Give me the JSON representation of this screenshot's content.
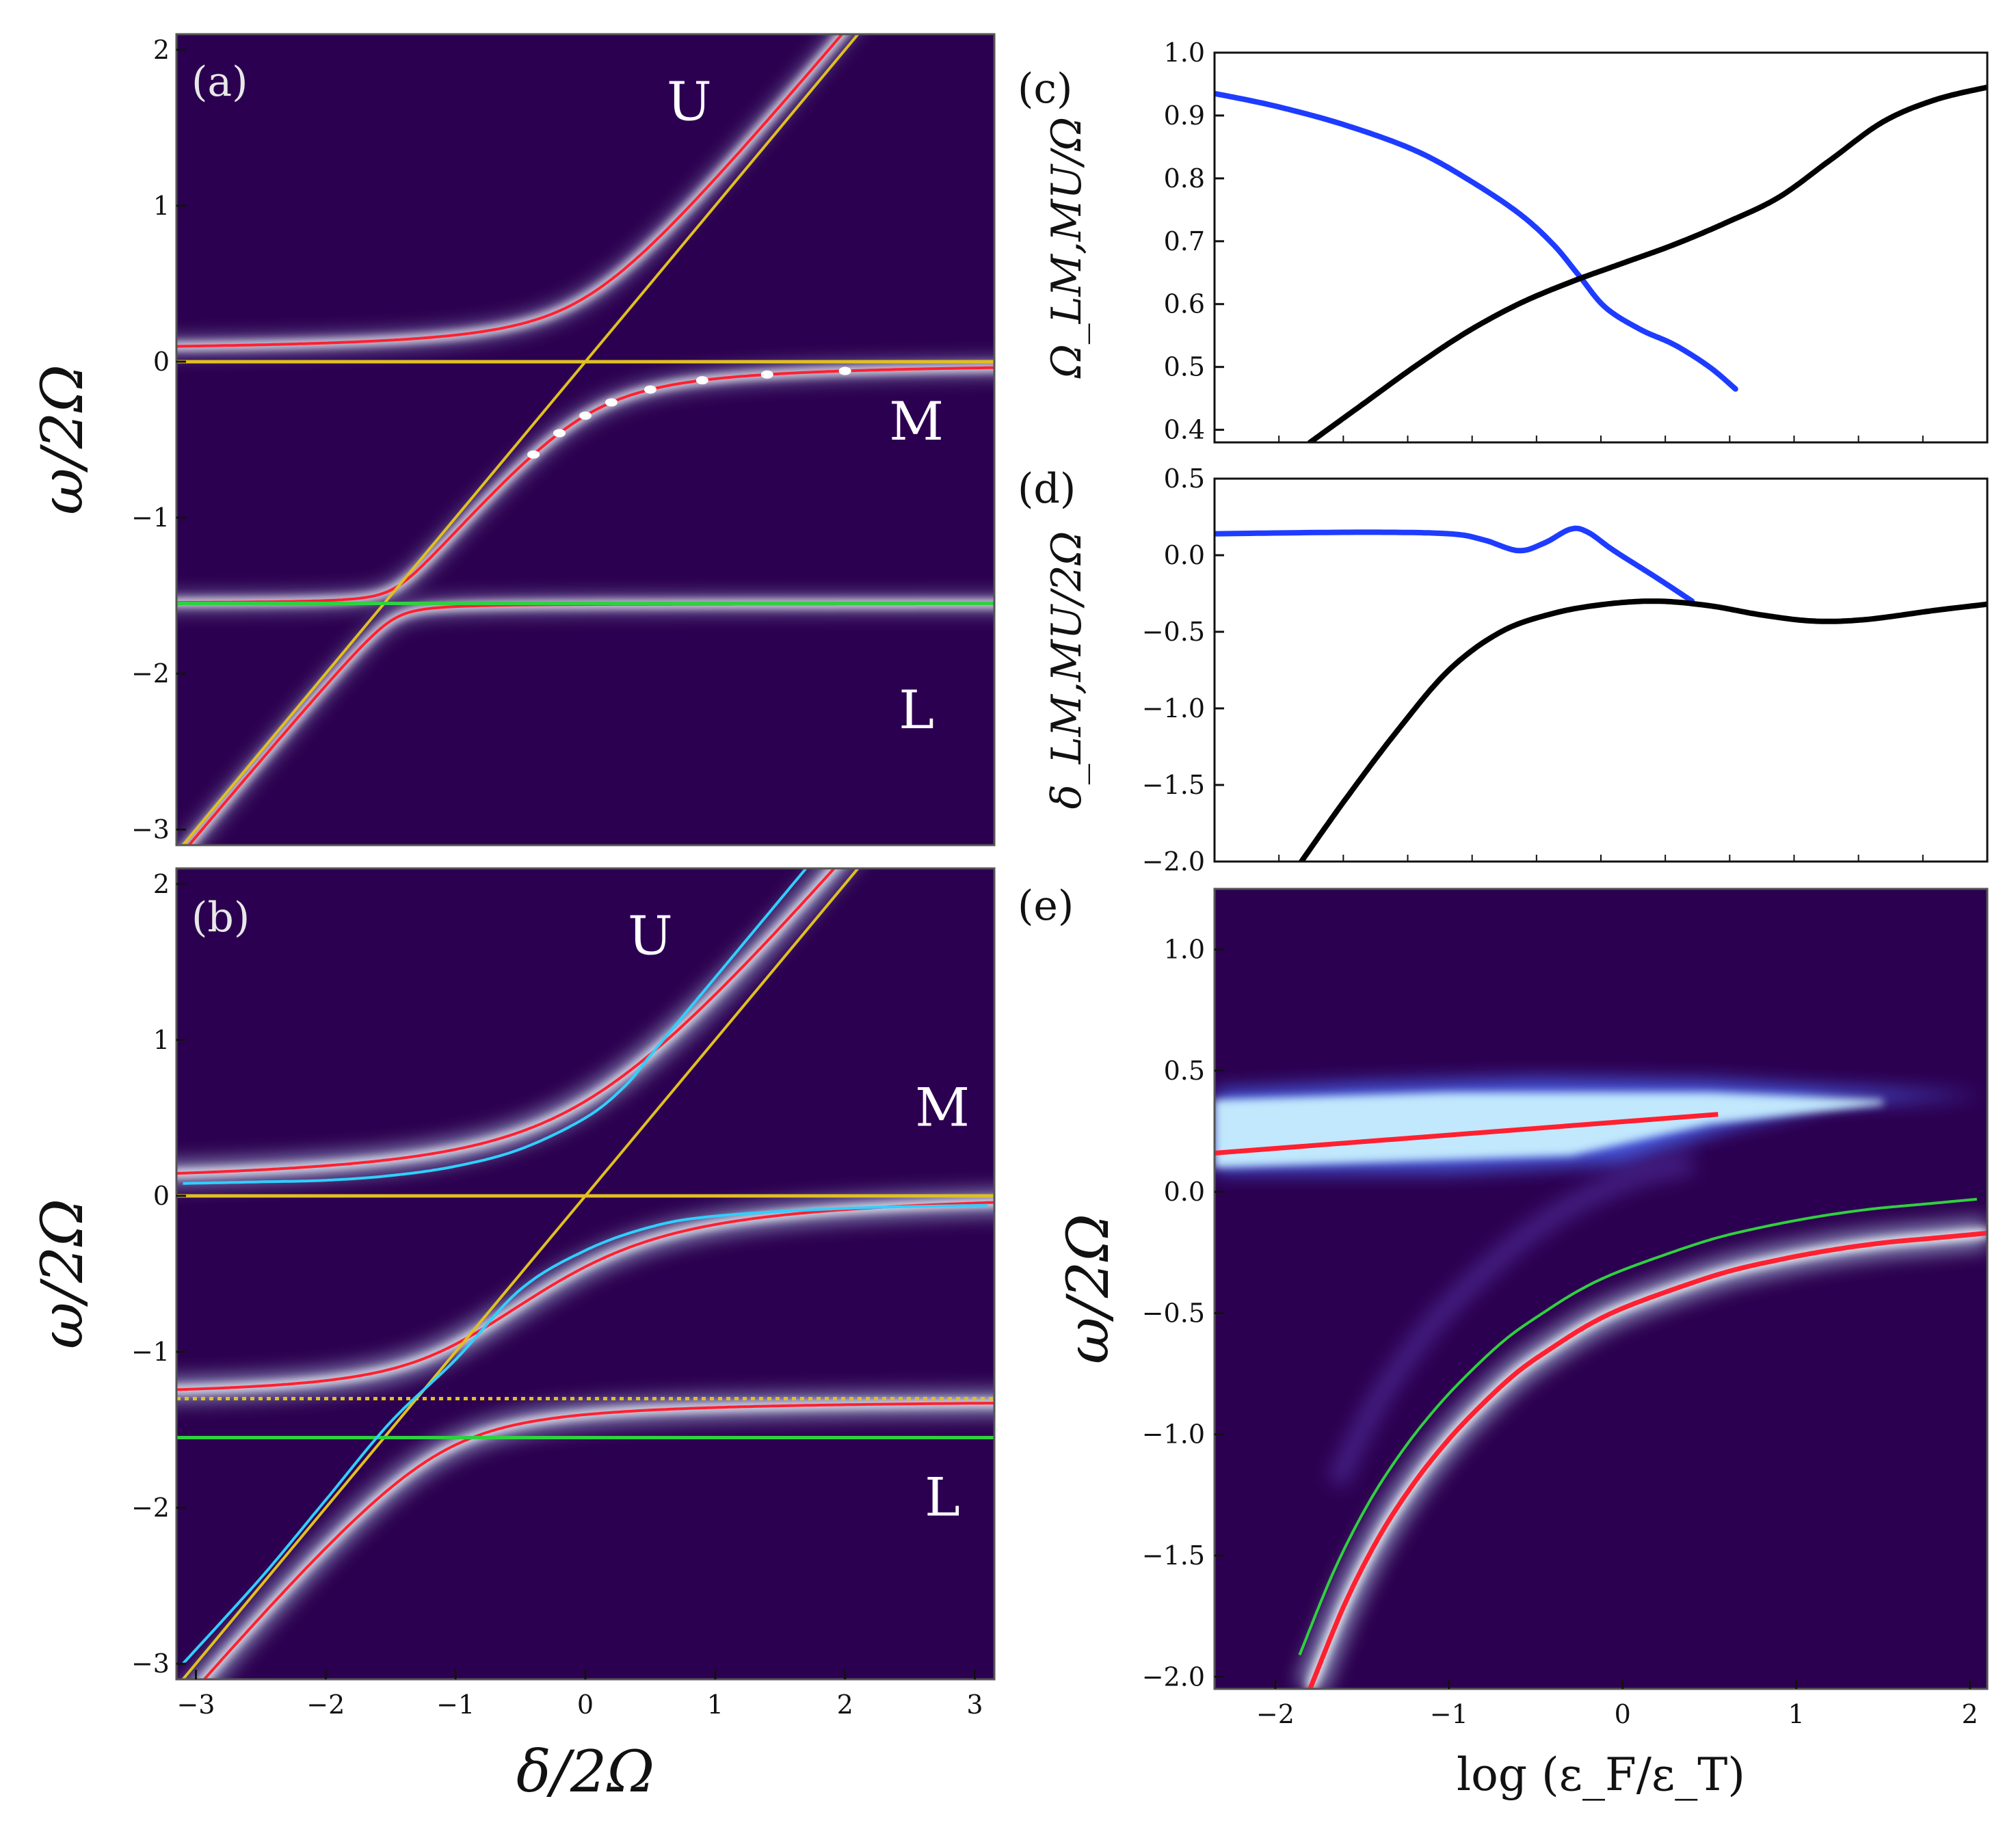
{
  "colors": {
    "background": "#2c0050",
    "glow": "#c8f0ff",
    "red": "#ff2030",
    "cyan": "#30d0ff",
    "yellow": "#e0c020",
    "green": "#30d040",
    "blue_curve": "#1e3cff",
    "black_curve": "#000000"
  },
  "chart_data": [
    {
      "id": "a",
      "type": "heatmap",
      "panel_label": "(a)",
      "xlabel": "δ/2Ω",
      "ylabel": "ω/2Ω",
      "xlim": [
        -3.15,
        3.15
      ],
      "ylim": [
        -3.1,
        2.1
      ],
      "xticks": [],
      "yticks": [
        {
          "v": 2,
          "t": "2"
        },
        {
          "v": 1,
          "t": "1"
        },
        {
          "v": 0,
          "t": "0"
        },
        {
          "v": -1,
          "t": "−1"
        },
        {
          "v": -2,
          "t": "−2"
        },
        {
          "v": -3,
          "t": "−3"
        }
      ],
      "branch_labels": [
        {
          "t": "U",
          "x": 0.8,
          "y": 1.55
        },
        {
          "t": "M",
          "x": 2.55,
          "y": -0.5
        },
        {
          "t": "L",
          "x": 2.55,
          "y": -2.35
        }
      ],
      "model": {
        "lines": [
          0,
          -1.55
        ],
        "g": [
          0.35,
          0.1
        ],
        "upper_offset": 0.06,
        "glow_width": 0.09
      },
      "horizontal_lines": [
        {
          "y": 0,
          "color": "yellow"
        },
        {
          "y": -1.55,
          "color": "green"
        }
      ],
      "dots": [
        -0.4,
        -0.2,
        0.0,
        0.2,
        0.5,
        0.9,
        1.4,
        2.0
      ]
    },
    {
      "id": "b",
      "type": "heatmap",
      "panel_label": "(b)",
      "xlabel": "δ/2Ω",
      "ylabel": "ω/2Ω",
      "xlim": [
        -3.15,
        3.15
      ],
      "ylim": [
        -3.1,
        2.1
      ],
      "xticks": [
        {
          "v": -3,
          "t": "−3"
        },
        {
          "v": -2,
          "t": "−2"
        },
        {
          "v": -1,
          "t": "−1"
        },
        {
          "v": 0,
          "t": "0"
        },
        {
          "v": 1,
          "t": "1"
        },
        {
          "v": 2,
          "t": "2"
        },
        {
          "v": 3,
          "t": "3"
        }
      ],
      "yticks": [
        {
          "v": 2,
          "t": "2"
        },
        {
          "v": 1,
          "t": "1"
        },
        {
          "v": 0,
          "t": "0"
        },
        {
          "v": -1,
          "t": "−1"
        },
        {
          "v": -2,
          "t": "−2"
        },
        {
          "v": -3,
          "t": "−3"
        }
      ],
      "branch_labels": [
        {
          "t": "U",
          "x": 0.5,
          "y": 1.55
        },
        {
          "t": "M",
          "x": 2.75,
          "y": 0.45
        },
        {
          "t": "L",
          "x": 2.75,
          "y": -2.05
        }
      ],
      "model": {
        "lines": [
          0.05,
          -1.3
        ],
        "g": [
          0.55,
          0.35
        ],
        "glow_width": 0.16
      },
      "horizontal_lines": [
        {
          "y": 0,
          "color": "yellow"
        },
        {
          "y": -1.3,
          "color": "yellow",
          "dotted": true
        },
        {
          "y": -1.55,
          "color": "green"
        }
      ],
      "cyan_curves": [
        {
          "x": [
            -3.1,
            -2.5,
            -2.0,
            -1.5,
            -1.0,
            -0.5,
            0.0,
            0.3,
            0.5,
            0.8,
            1.2,
            1.7
          ],
          "y": [
            0.08,
            0.09,
            0.1,
            0.13,
            0.19,
            0.3,
            0.5,
            0.7,
            0.9,
            1.2,
            1.6,
            2.1
          ]
        },
        {
          "x": [
            -3.1,
            -2.5,
            -2.0,
            -1.5,
            -1.0,
            -0.5,
            0.0,
            0.5,
            1.0,
            2.0,
            3.1
          ],
          "y": [
            -3.0,
            -2.45,
            -1.95,
            -1.45,
            -1.05,
            -0.6,
            -0.35,
            -0.2,
            -0.13,
            -0.08,
            -0.06
          ]
        }
      ]
    },
    {
      "id": "c",
      "type": "line",
      "panel_label": "(c)",
      "ylabel": "Ω_LM,MU/Ω",
      "xlim": [
        -2.35,
        2.1
      ],
      "ylim": [
        0.38,
        1.0
      ],
      "yticks": [
        {
          "v": 1.0,
          "t": "1.0"
        },
        {
          "v": 0.9,
          "t": "0.9"
        },
        {
          "v": 0.8,
          "t": "0.8"
        },
        {
          "v": 0.7,
          "t": "0.7"
        },
        {
          "v": 0.6,
          "t": "0.6"
        },
        {
          "v": 0.5,
          "t": "0.5"
        },
        {
          "v": 0.4,
          "t": "0.4"
        }
      ],
      "series": [
        {
          "name": "LM",
          "color": "blue",
          "x": [
            -2.35,
            -2.0,
            -1.6,
            -1.2,
            -0.9,
            -0.6,
            -0.4,
            -0.25,
            -0.1,
            0.1,
            0.3,
            0.5,
            0.65
          ],
          "y": [
            0.935,
            0.915,
            0.885,
            0.845,
            0.8,
            0.745,
            0.695,
            0.645,
            0.595,
            0.56,
            0.535,
            0.5,
            0.465
          ]
        },
        {
          "name": "MU",
          "color": "black",
          "x": [
            -1.8,
            -1.5,
            -1.2,
            -0.9,
            -0.6,
            -0.3,
            0.0,
            0.3,
            0.6,
            0.9,
            1.2,
            1.5,
            1.8,
            2.1
          ],
          "y": [
            0.38,
            0.44,
            0.5,
            0.555,
            0.6,
            0.635,
            0.665,
            0.695,
            0.73,
            0.77,
            0.83,
            0.89,
            0.925,
            0.945
          ]
        }
      ]
    },
    {
      "id": "d",
      "type": "line",
      "panel_label": "(d)",
      "ylabel": "δ_LM,MU/2Ω",
      "xlim": [
        -2.35,
        2.1
      ],
      "ylim": [
        -2.0,
        0.5
      ],
      "yticks": [
        {
          "v": 0.5,
          "t": "0.5"
        },
        {
          "v": 0.0,
          "t": "0.0"
        },
        {
          "v": -0.5,
          "t": "−0.5"
        },
        {
          "v": -1.0,
          "t": "−1.0"
        },
        {
          "v": -1.5,
          "t": "−1.5"
        },
        {
          "v": -2.0,
          "t": "−2.0"
        }
      ],
      "series": [
        {
          "name": "LM",
          "color": "blue",
          "x": [
            -2.35,
            -1.5,
            -1.0,
            -0.8,
            -0.6,
            -0.45,
            -0.3,
            -0.2,
            -0.05,
            0.2,
            0.4
          ],
          "y": [
            0.14,
            0.15,
            0.14,
            0.1,
            0.03,
            0.08,
            0.17,
            0.15,
            0.03,
            -0.15,
            -0.3
          ]
        },
        {
          "name": "MU",
          "color": "black",
          "x": [
            -1.85,
            -1.6,
            -1.3,
            -1.0,
            -0.7,
            -0.4,
            -0.1,
            0.2,
            0.5,
            0.8,
            1.1,
            1.4,
            1.8,
            2.1
          ],
          "y": [
            -2.0,
            -1.6,
            -1.15,
            -0.75,
            -0.5,
            -0.38,
            -0.32,
            -0.3,
            -0.33,
            -0.39,
            -0.43,
            -0.42,
            -0.36,
            -0.32
          ]
        }
      ]
    },
    {
      "id": "e",
      "type": "heatmap",
      "panel_label": "(e)",
      "xlabel": "log (ε_F/ε_T)",
      "ylabel": "ω/2Ω",
      "xlim": [
        -2.35,
        2.1
      ],
      "ylim": [
        -2.05,
        1.25
      ],
      "xticks": [
        {
          "v": -2,
          "t": "−2"
        },
        {
          "v": -1,
          "t": "−1"
        },
        {
          "v": 0,
          "t": "0"
        },
        {
          "v": 1,
          "t": "1"
        },
        {
          "v": 2,
          "t": "2"
        }
      ],
      "yticks": [
        {
          "v": 1.0,
          "t": "1.0"
        },
        {
          "v": 0.5,
          "t": "0.5"
        },
        {
          "v": 0.0,
          "t": "0.0"
        },
        {
          "v": -0.5,
          "t": "−0.5"
        },
        {
          "v": -1.0,
          "t": "−1.0"
        },
        {
          "v": -1.5,
          "t": "−1.5"
        },
        {
          "v": -2.0,
          "t": "−2.0"
        }
      ],
      "red_upper": {
        "x": [
          -2.35,
          0.55
        ],
        "y": [
          0.16,
          0.32
        ]
      },
      "red_lower": {
        "x": [
          -1.8,
          -1.6,
          -1.4,
          -1.2,
          -1.0,
          -0.8,
          -0.6,
          -0.4,
          -0.2,
          0.0,
          0.3,
          0.6,
          0.9,
          1.2,
          1.5,
          1.8,
          2.1
        ],
        "y": [
          -2.05,
          -1.7,
          -1.42,
          -1.2,
          -1.02,
          -0.87,
          -0.74,
          -0.64,
          -0.55,
          -0.48,
          -0.4,
          -0.33,
          -0.28,
          -0.24,
          -0.21,
          -0.19,
          -0.17
        ]
      },
      "green_offset": 0.14
    }
  ]
}
